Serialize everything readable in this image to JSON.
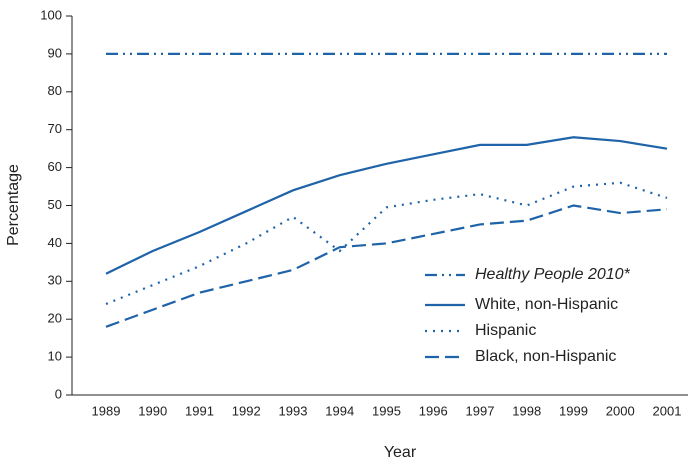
{
  "chart_data": {
    "type": "line",
    "x_label": "Year",
    "y_label": "Percentage",
    "categories": [
      "1989",
      "1990",
      "1991",
      "1992",
      "1993",
      "1994",
      "1995",
      "1996",
      "1997",
      "1998",
      "1999",
      "2000",
      "2001"
    ],
    "ylim": [
      0,
      100
    ],
    "yticks": [
      0,
      10,
      20,
      30,
      40,
      50,
      60,
      70,
      80,
      90,
      100
    ],
    "legend": "lower right",
    "series": [
      {
        "name": "Healthy People 2010*",
        "color": "#1f63a8",
        "dash": "dashdotdot",
        "values": [
          90,
          90,
          90,
          90,
          90,
          90,
          90,
          90,
          90,
          90,
          90,
          90,
          90
        ]
      },
      {
        "name": "White, non-Hispanic",
        "color": "#1f63a8",
        "dash": "solid",
        "values": [
          32,
          38,
          43,
          48.5,
          54,
          58,
          61,
          63.5,
          66,
          66,
          68,
          67,
          65
        ]
      },
      {
        "name": "Hispanic",
        "color": "#1f63a8",
        "dash": "dotted",
        "values": [
          24,
          29,
          34,
          40,
          47,
          38,
          49.5,
          51.5,
          53,
          50,
          55,
          56,
          52
        ]
      },
      {
        "name": "Black, non-Hispanic",
        "color": "#1f63a8",
        "dash": "dashed",
        "values": [
          18,
          22.5,
          27,
          30,
          33,
          39,
          40,
          42.5,
          45,
          46,
          50,
          48,
          49
        ]
      }
    ]
  }
}
